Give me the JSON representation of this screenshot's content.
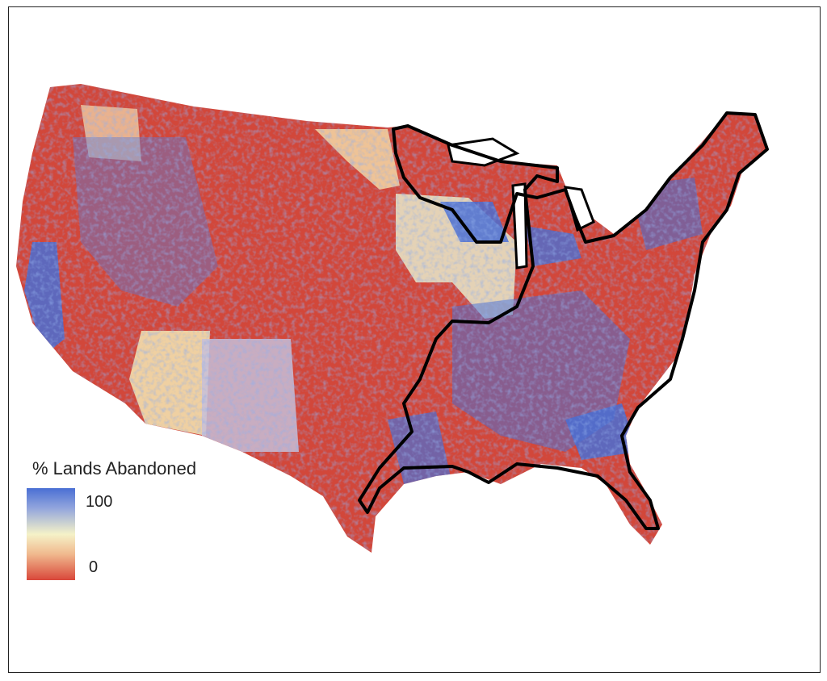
{
  "legend": {
    "title": "% Lands Abandoned",
    "max_label": "100",
    "min_label": "0",
    "colors": [
      "#4a6fd4",
      "#f5f2c8",
      "#d9473a"
    ]
  },
  "map": {
    "region": "Contiguous United States",
    "base_color": "#d2473a",
    "outline_color": "#000000"
  }
}
